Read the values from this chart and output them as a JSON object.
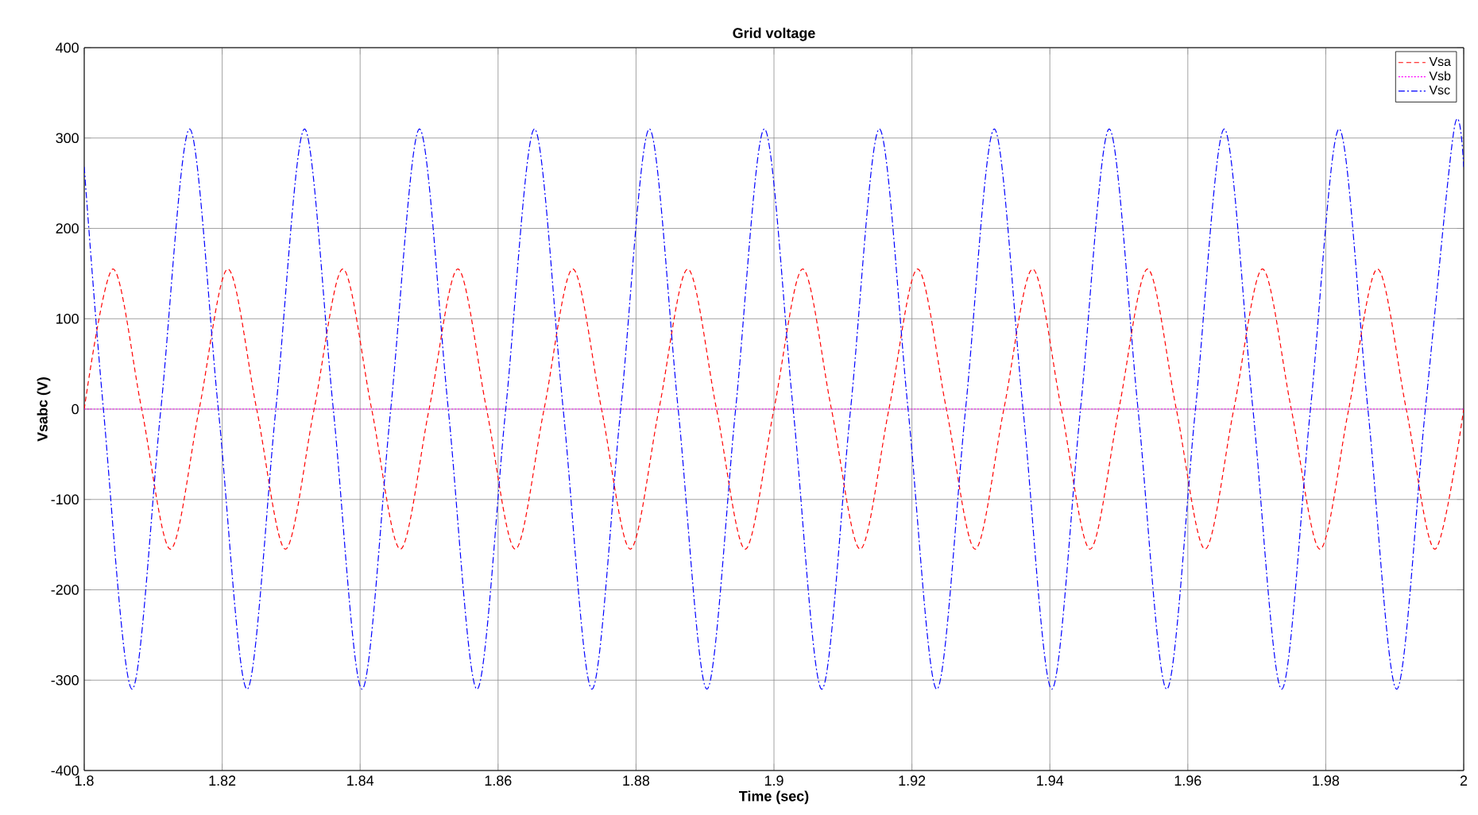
{
  "chart_data": {
    "type": "line",
    "title": "Grid voltage",
    "xlabel": "Time (sec)",
    "ylabel": "Vsabc (V)",
    "xlim": [
      1.8,
      2.0
    ],
    "xticks": [
      1.8,
      1.82,
      1.84,
      1.86,
      1.88,
      1.9,
      1.92,
      1.94,
      1.96,
      1.98,
      2
    ],
    "ylim": [
      -400,
      400
    ],
    "yticks": [
      -400,
      -300,
      -200,
      -100,
      0,
      100,
      200,
      300,
      400
    ],
    "grid": true,
    "legend": "top right",
    "marker": "none",
    "series": [
      {
        "name": "Vsa",
        "color": "#ff0000",
        "line_style": "dashed",
        "x": [
          1.8,
          1.80417,
          1.80833,
          1.8125,
          1.81667,
          1.82083,
          1.825,
          1.82917,
          1.83333,
          1.8375,
          1.84167,
          1.84583,
          1.85,
          1.85417,
          1.85833,
          1.8625,
          1.86667,
          1.87083,
          1.875,
          1.87917,
          1.88333,
          1.8875,
          1.89167,
          1.89583,
          1.9,
          1.90417,
          1.90833,
          1.9125,
          1.91667,
          1.92083,
          1.925,
          1.92917,
          1.93333,
          1.9375,
          1.94167,
          1.94583,
          1.95,
          1.95417,
          1.95833,
          1.9625,
          1.96667,
          1.97083,
          1.975,
          1.97917,
          1.98333,
          1.9875,
          1.99167,
          1.99583,
          2.0
        ],
        "values": [
          0,
          155,
          0,
          -155,
          0,
          155,
          0,
          -155,
          0,
          155,
          0,
          -155,
          0,
          155,
          0,
          -155,
          0,
          155,
          0,
          -155,
          0,
          155,
          0,
          -155,
          0,
          155,
          0,
          -155,
          0,
          155,
          0,
          -155,
          0,
          155,
          0,
          -155,
          0,
          155,
          0,
          -155,
          0,
          155,
          0,
          -155,
          0,
          155,
          0,
          -155,
          0
        ]
      },
      {
        "name": "Vsb",
        "color": "#ff00ff",
        "line_style": "dotted",
        "x": [
          1.8,
          2.0
        ],
        "values": [
          0,
          0
        ]
      },
      {
        "name": "Vsc",
        "color": "#0000ff",
        "line_style": "dashdot",
        "x": [
          1.8,
          1.80278,
          1.80694,
          1.81111,
          1.81528,
          1.81944,
          1.82361,
          1.82778,
          1.83194,
          1.83611,
          1.84028,
          1.84444,
          1.84861,
          1.85278,
          1.85694,
          1.86111,
          1.86528,
          1.86944,
          1.87361,
          1.87778,
          1.88194,
          1.88611,
          1.89028,
          1.89444,
          1.89861,
          1.90278,
          1.90694,
          1.91111,
          1.91528,
          1.91944,
          1.92361,
          1.92778,
          1.93194,
          1.93611,
          1.94028,
          1.94444,
          1.94861,
          1.95278,
          1.95694,
          1.96111,
          1.96528,
          1.96944,
          1.97361,
          1.97778,
          1.98194,
          1.98611,
          1.99028,
          1.99444,
          1.99861,
          2.0
        ],
        "values": [
          268,
          0,
          -310,
          0,
          310,
          0,
          -310,
          0,
          310,
          0,
          -310,
          0,
          310,
          0,
          -310,
          0,
          310,
          0,
          -310,
          0,
          310,
          0,
          -310,
          0,
          310,
          0,
          -310,
          0,
          310,
          0,
          -310,
          0,
          310,
          0,
          -310,
          0,
          310,
          0,
          -310,
          0,
          310,
          0,
          -310,
          0,
          310,
          0,
          -310,
          0,
          310,
          268
        ]
      }
    ]
  }
}
